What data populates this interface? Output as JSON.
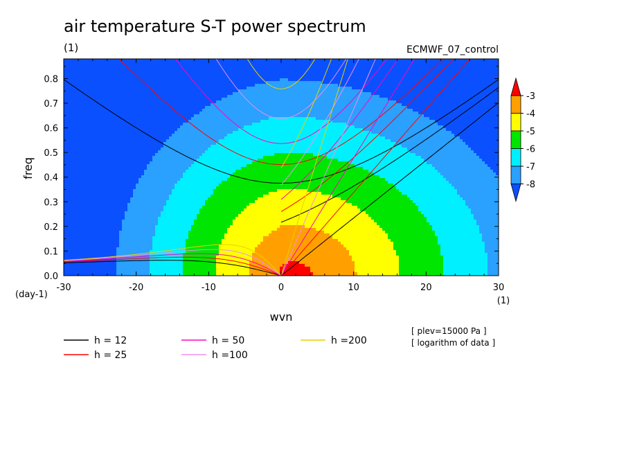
{
  "chart_data": {
    "type": "heatmap",
    "title": "air temperature S-T power spectrum",
    "units": "(1)",
    "run_label": "ECMWF_07_control",
    "xlabel": "wvn",
    "ylabel": "freq",
    "x_unit": "(1)",
    "y_unit": "(day-1)",
    "xlim": [
      -30,
      30
    ],
    "ylim": [
      0,
      0.88
    ],
    "xticks": [
      "-30",
      "-20",
      "-10",
      "0",
      "10",
      "20",
      "30"
    ],
    "xtick_values": [
      -30,
      -20,
      -10,
      0,
      10,
      20,
      30
    ],
    "yticks": [
      "0.0",
      "0.1",
      "0.2",
      "0.3",
      "0.4",
      "0.5",
      "0.6",
      "0.7",
      "0.8"
    ],
    "ytick_values": [
      0,
      0.1,
      0.2,
      0.3,
      0.4,
      0.5,
      0.6,
      0.7,
      0.8
    ],
    "colorbar": {
      "labels": [
        "-3",
        "-4",
        "-5",
        "-6",
        "-7",
        "-8"
      ],
      "label_values": [
        -3,
        -4,
        -5,
        -6,
        -7,
        -8
      ],
      "levels": [
        -8,
        -7,
        -6,
        -5,
        -4,
        -3
      ],
      "colors": [
        "#0a50ff",
        "#2aa0ff",
        "#00f0ff",
        "#00e600",
        "#ffff00",
        "#ffa000",
        "#ff0000"
      ]
    },
    "contour_field": {
      "description_of_regions": [
        "<-8",
        "-8..-7",
        "-7..-6",
        "-6..-5",
        "-5..-4",
        "-4..-3",
        ">-3"
      ],
      "center_freq": 0,
      "center_wvn": 2
    },
    "dispersion_curves": [
      {
        "name": "h = 12",
        "h": 12,
        "color": "#000000"
      },
      {
        "name": "h = 25",
        "h": 25,
        "color": "#ff0000"
      },
      {
        "name": "h = 50",
        "h": 50,
        "color": "#ff00c0"
      },
      {
        "name": "h =100",
        "h": 100,
        "color": "#ee90ee"
      },
      {
        "name": "h =200",
        "h": 200,
        "color": "#e6d200"
      }
    ],
    "notes": [
      "[ plev=15000 Pa ]",
      "[ logarithm of data ]"
    ]
  }
}
